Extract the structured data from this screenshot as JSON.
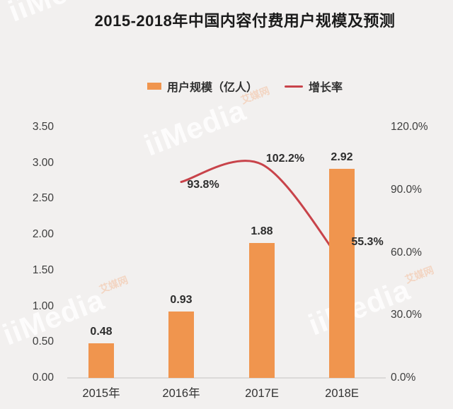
{
  "page": {
    "background": "#F2F0EF"
  },
  "title": "2015-2018年中国内容付费用户规模及预测",
  "legend": {
    "items": [
      {
        "label": "用户规模（亿人）",
        "marker": "bar-swatch",
        "color": "#F0954E"
      },
      {
        "label": "增长率",
        "marker": "line-swatch",
        "color": "#C8434A"
      }
    ]
  },
  "watermark": {
    "brand": "iiMedia",
    "suffix": "艾媒网"
  },
  "chart_data": {
    "type": "bar+line",
    "title": "2015-2018年中国内容付费用户规模及预测",
    "categories": [
      "2015年",
      "2016年",
      "2017E",
      "2018E"
    ],
    "series": [
      {
        "name": "用户规模（亿人）",
        "type": "bar",
        "axis": "left",
        "color": "#F0954E",
        "values": [
          0.48,
          0.93,
          1.88,
          2.92
        ],
        "labels": [
          "0.48",
          "0.93",
          "1.88",
          "2.92"
        ]
      },
      {
        "name": "增长率",
        "type": "line",
        "axis": "right",
        "color": "#C8434A",
        "values": [
          null,
          93.8,
          102.2,
          55.3
        ],
        "labels": [
          null,
          "93.8%",
          "102.2%",
          "55.3%"
        ]
      }
    ],
    "left_axis": {
      "min": 0,
      "max": 3.5,
      "ticks": [
        "3.50",
        "3.00",
        "2.50",
        "2.00",
        "1.50",
        "1.00",
        "0.50",
        "0.00"
      ]
    },
    "right_axis": {
      "min": 0,
      "max": 120,
      "ticks": [
        "120.0%",
        "90.0%",
        "60.0%",
        "30.0%",
        "0.0%"
      ]
    },
    "grid": false,
    "legend_position": "top",
    "line_smoothing": true
  }
}
